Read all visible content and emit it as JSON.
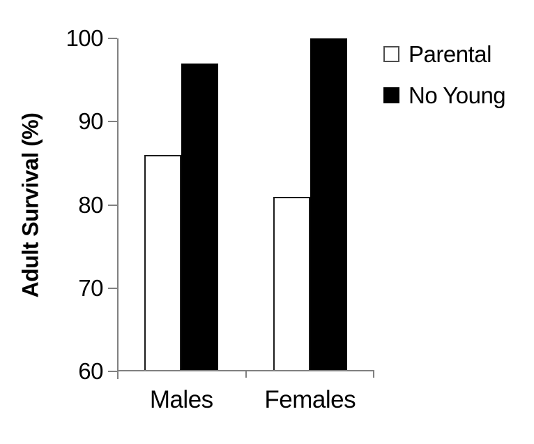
{
  "figure": {
    "background": "#ffffff",
    "axis_color": "#808080",
    "text_color": "#000000"
  },
  "chart_data": {
    "type": "bar",
    "title": "",
    "xlabel": "",
    "ylabel": "Adult Survival (%)",
    "categories": [
      "Males",
      "Females"
    ],
    "series": [
      {
        "name": "Parental",
        "values": [
          86,
          81
        ],
        "fill": "#ffffff",
        "border": "#000000"
      },
      {
        "name": "No Young",
        "values": [
          97,
          100
        ],
        "fill": "#000000",
        "border": "#000000"
      }
    ],
    "ylim": [
      60,
      100
    ],
    "yticks": [
      60,
      70,
      80,
      90,
      100
    ],
    "grid": false,
    "legend_position": "top-right"
  }
}
